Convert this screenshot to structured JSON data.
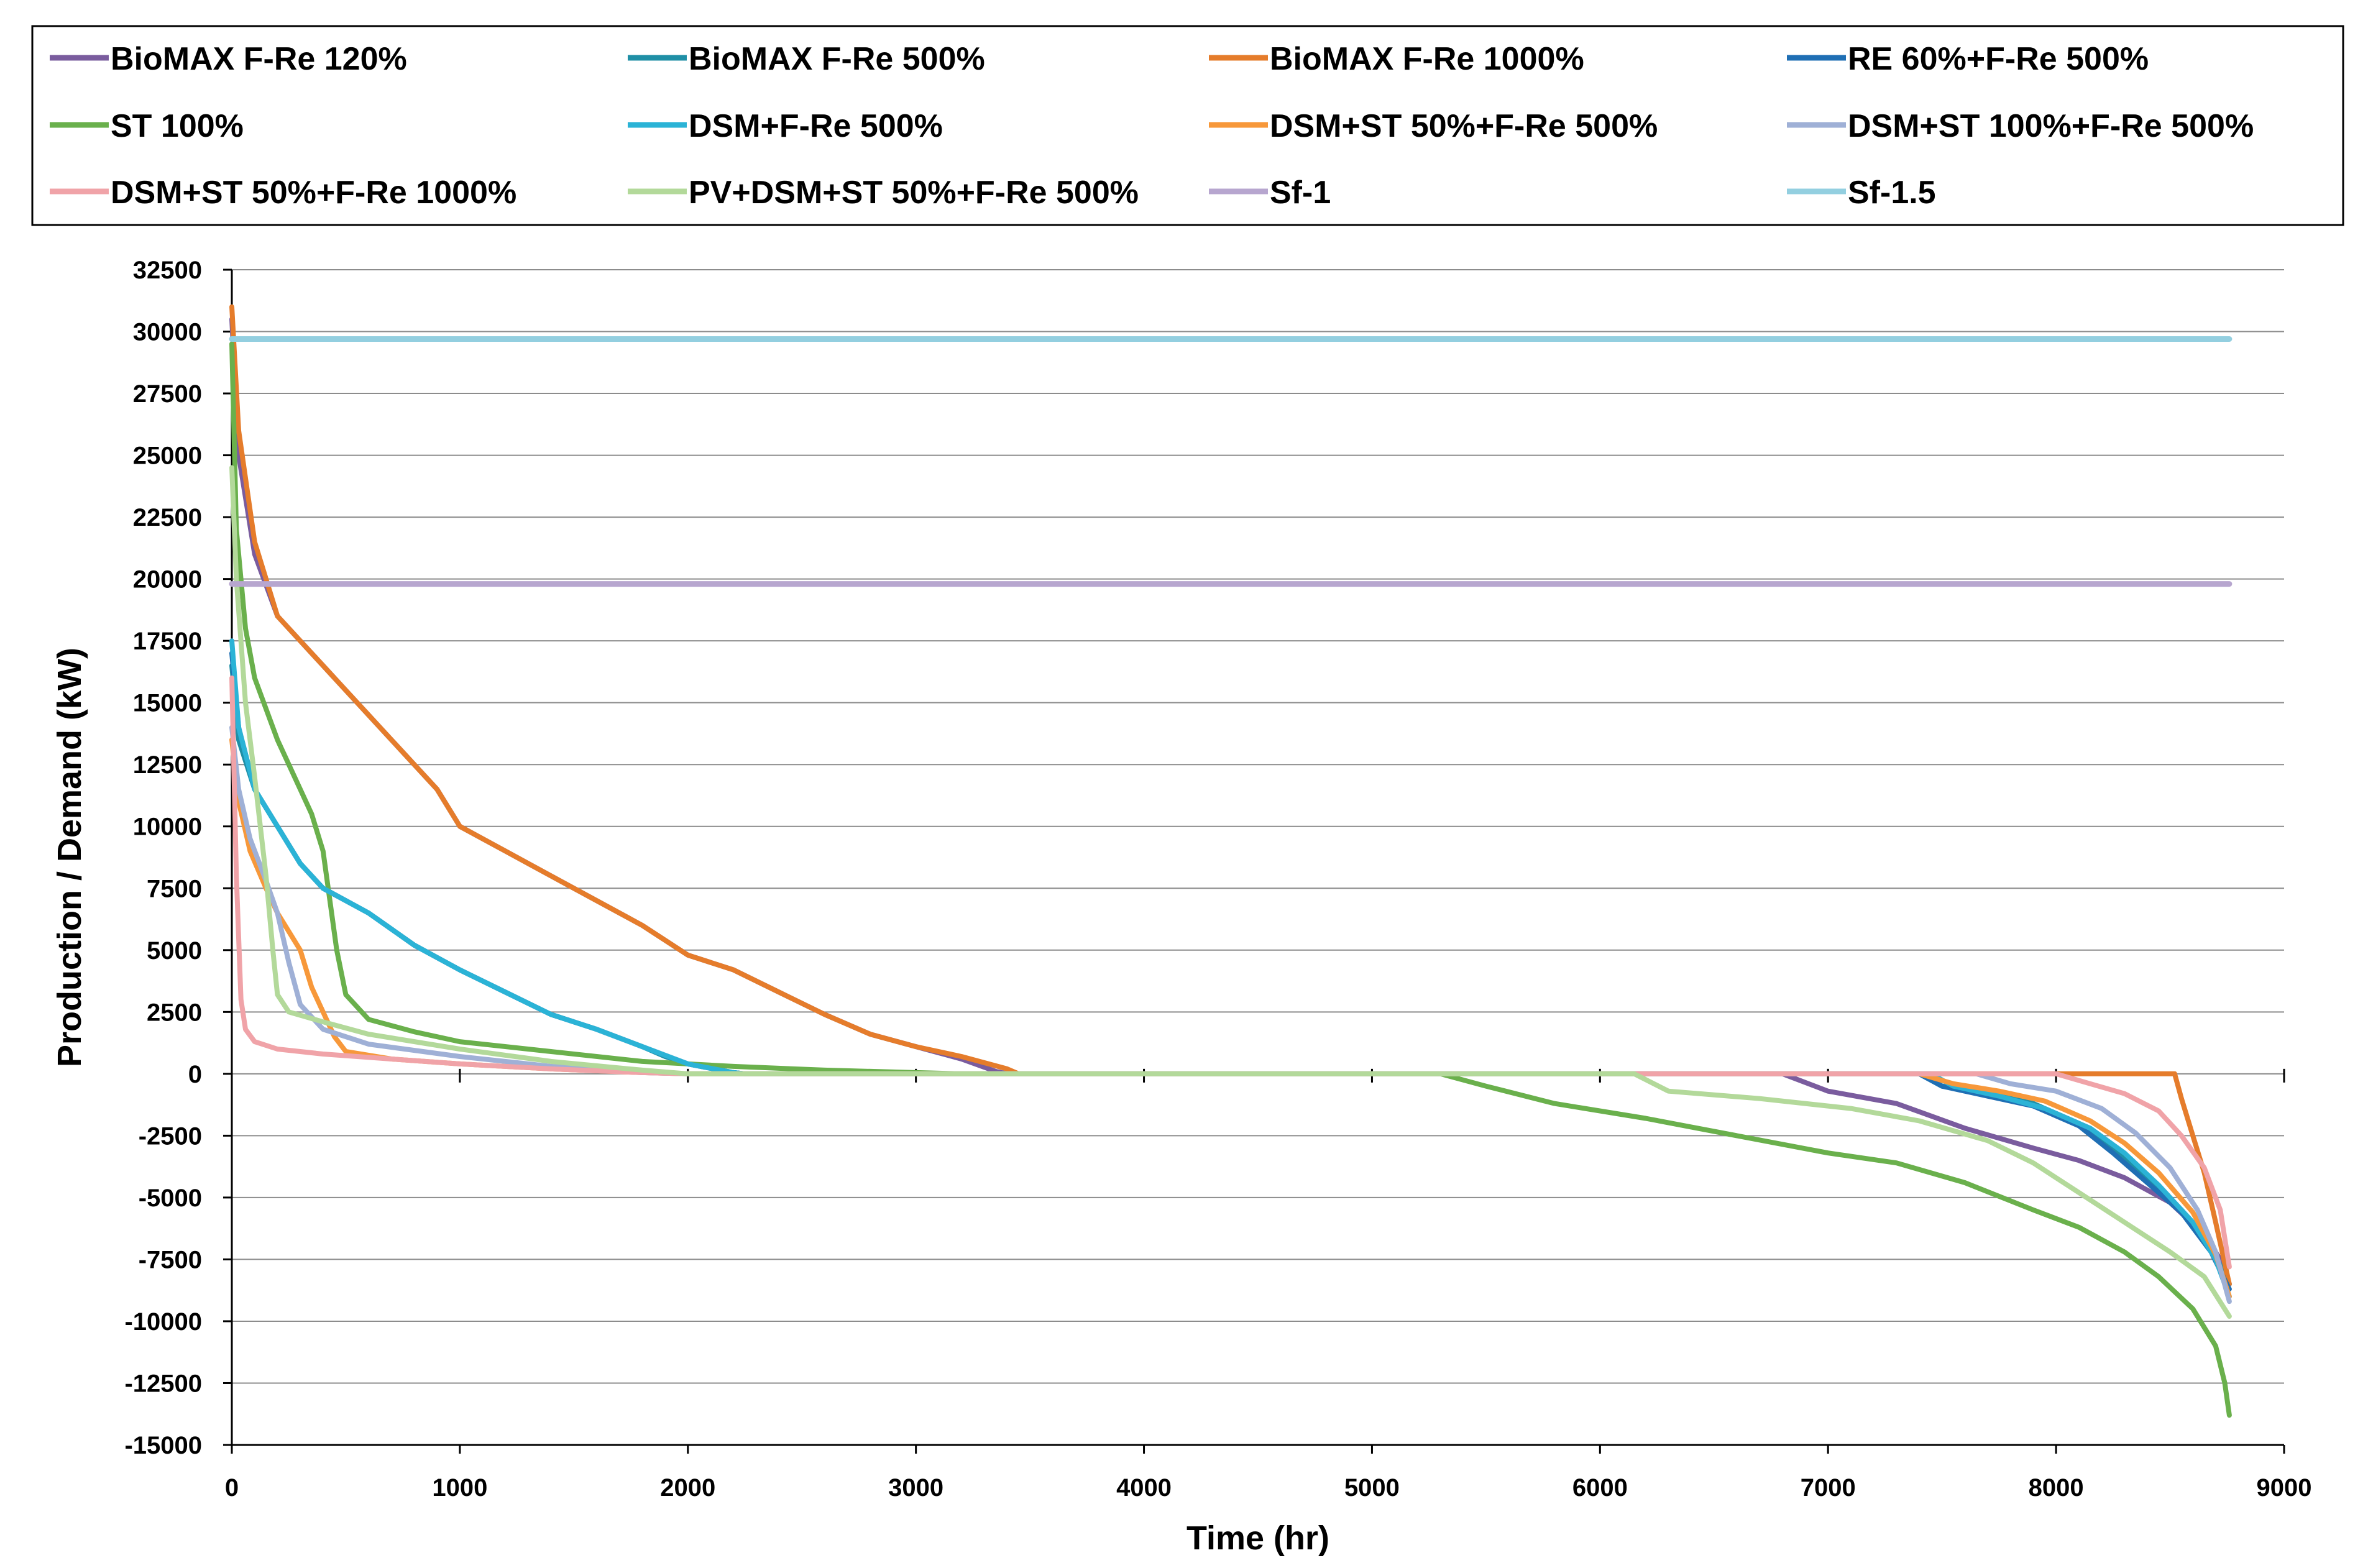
{
  "chart_data": {
    "type": "line",
    "title": "",
    "xlabel": "Time (hr)",
    "ylabel": "Production  / Demand (kW)",
    "xlim": [
      0,
      9000
    ],
    "ylim": [
      -15000,
      32500
    ],
    "xticks": [
      0,
      1000,
      2000,
      3000,
      4000,
      5000,
      6000,
      7000,
      8000,
      9000
    ],
    "yticks": [
      32500,
      30000,
      27500,
      25000,
      22500,
      20000,
      17500,
      15000,
      12500,
      10000,
      7500,
      5000,
      2500,
      0,
      -2500,
      -5000,
      -7500,
      -10000,
      -12500,
      -15000
    ],
    "grid": "horizontal",
    "legend_position": "top",
    "series": [
      {
        "name": "BioMAX F-Re 120%",
        "color": "#7a5c9e",
        "points": [
          [
            0,
            30500
          ],
          [
            30,
            25000
          ],
          [
            100,
            21000
          ],
          [
            200,
            18500
          ],
          [
            300,
            17500
          ],
          [
            400,
            16500
          ],
          [
            500,
            15500
          ],
          [
            700,
            13500
          ],
          [
            900,
            11500
          ],
          [
            1000,
            10000
          ],
          [
            1200,
            9000
          ],
          [
            1400,
            8000
          ],
          [
            1600,
            7000
          ],
          [
            1800,
            6000
          ],
          [
            2000,
            4800
          ],
          [
            2200,
            4200
          ],
          [
            2400,
            3300
          ],
          [
            2600,
            2400
          ],
          [
            2800,
            1600
          ],
          [
            3000,
            1100
          ],
          [
            3200,
            600
          ],
          [
            3350,
            100
          ],
          [
            3400,
            0
          ],
          [
            6800,
            0
          ],
          [
            7000,
            -700
          ],
          [
            7300,
            -1200
          ],
          [
            7600,
            -2200
          ],
          [
            7900,
            -3000
          ],
          [
            8100,
            -3500
          ],
          [
            8300,
            -4200
          ],
          [
            8500,
            -5200
          ],
          [
            8650,
            -6500
          ],
          [
            8720,
            -7500
          ],
          [
            8760,
            -8500
          ]
        ]
      },
      {
        "name": "BioMAX F-Re 500%",
        "color": "#1f8fa6",
        "points": [
          [
            0,
            16500
          ],
          [
            30,
            13500
          ],
          [
            100,
            11500
          ],
          [
            200,
            10000
          ],
          [
            300,
            8500
          ],
          [
            400,
            7500
          ],
          [
            600,
            6500
          ],
          [
            800,
            5200
          ],
          [
            1000,
            4200
          ],
          [
            1200,
            3300
          ],
          [
            1400,
            2400
          ],
          [
            1600,
            1800
          ],
          [
            1800,
            1100
          ],
          [
            1900,
            700
          ],
          [
            2000,
            400
          ],
          [
            2200,
            50
          ],
          [
            2250,
            0
          ],
          [
            7400,
            0
          ],
          [
            7500,
            -500
          ],
          [
            7700,
            -800
          ],
          [
            7900,
            -1200
          ],
          [
            8100,
            -2000
          ],
          [
            8250,
            -3000
          ],
          [
            8400,
            -4200
          ],
          [
            8550,
            -5500
          ],
          [
            8680,
            -7000
          ],
          [
            8760,
            -8500
          ]
        ]
      },
      {
        "name": "BioMAX F-Re 1000%",
        "color": "#e57c2b",
        "points": [
          [
            0,
            31000
          ],
          [
            30,
            26000
          ],
          [
            100,
            21500
          ],
          [
            200,
            18500
          ],
          [
            300,
            17500
          ],
          [
            400,
            16500
          ],
          [
            500,
            15500
          ],
          [
            700,
            13500
          ],
          [
            900,
            11500
          ],
          [
            1000,
            10000
          ],
          [
            1200,
            9000
          ],
          [
            1400,
            8000
          ],
          [
            1600,
            7000
          ],
          [
            1800,
            6000
          ],
          [
            2000,
            4800
          ],
          [
            2200,
            4200
          ],
          [
            2400,
            3300
          ],
          [
            2600,
            2400
          ],
          [
            2800,
            1600
          ],
          [
            3000,
            1100
          ],
          [
            3200,
            700
          ],
          [
            3400,
            200
          ],
          [
            3450,
            0
          ],
          [
            8520,
            0
          ],
          [
            8550,
            -1000
          ],
          [
            8600,
            -2500
          ],
          [
            8650,
            -4000
          ],
          [
            8700,
            -6000
          ],
          [
            8760,
            -8500
          ]
        ]
      },
      {
        "name": "RE 60%+F-Re 500%",
        "color": "#1f6fb4",
        "points": [
          [
            0,
            17000
          ],
          [
            30,
            14000
          ],
          [
            100,
            11500
          ],
          [
            200,
            10000
          ],
          [
            300,
            8500
          ],
          [
            400,
            7500
          ],
          [
            600,
            6500
          ],
          [
            800,
            5200
          ],
          [
            1000,
            4200
          ],
          [
            1200,
            3300
          ],
          [
            1400,
            2400
          ],
          [
            1600,
            1800
          ],
          [
            1800,
            1100
          ],
          [
            2000,
            400
          ],
          [
            2200,
            50
          ],
          [
            2250,
            0
          ],
          [
            7400,
            0
          ],
          [
            7500,
            -500
          ],
          [
            7700,
            -900
          ],
          [
            7900,
            -1300
          ],
          [
            8100,
            -2100
          ],
          [
            8250,
            -3200
          ],
          [
            8400,
            -4400
          ],
          [
            8550,
            -5600
          ],
          [
            8680,
            -7200
          ],
          [
            8760,
            -8700
          ]
        ]
      },
      {
        "name": "ST 100%",
        "color": "#6ab04c",
        "points": [
          [
            0,
            29500
          ],
          [
            20,
            22000
          ],
          [
            60,
            18000
          ],
          [
            100,
            16000
          ],
          [
            200,
            13500
          ],
          [
            300,
            11500
          ],
          [
            350,
            10500
          ],
          [
            400,
            9000
          ],
          [
            430,
            7000
          ],
          [
            460,
            5000
          ],
          [
            500,
            3200
          ],
          [
            600,
            2200
          ],
          [
            800,
            1700
          ],
          [
            1000,
            1300
          ],
          [
            1400,
            900
          ],
          [
            1800,
            500
          ],
          [
            2200,
            300
          ],
          [
            2600,
            150
          ],
          [
            3000,
            50
          ],
          [
            3200,
            0
          ],
          [
            5300,
            0
          ],
          [
            5500,
            -500
          ],
          [
            5800,
            -1200
          ],
          [
            6200,
            -1800
          ],
          [
            6600,
            -2500
          ],
          [
            7000,
            -3200
          ],
          [
            7300,
            -3600
          ],
          [
            7600,
            -4400
          ],
          [
            7900,
            -5500
          ],
          [
            8100,
            -6200
          ],
          [
            8300,
            -7200
          ],
          [
            8450,
            -8200
          ],
          [
            8600,
            -9500
          ],
          [
            8700,
            -11000
          ],
          [
            8740,
            -12500
          ],
          [
            8760,
            -13800
          ]
        ]
      },
      {
        "name": "DSM+F-Re 500%",
        "color": "#2bb3d6",
        "points": [
          [
            0,
            17500
          ],
          [
            30,
            14000
          ],
          [
            100,
            11500
          ],
          [
            200,
            10000
          ],
          [
            300,
            8500
          ],
          [
            400,
            7500
          ],
          [
            600,
            6500
          ],
          [
            800,
            5200
          ],
          [
            1000,
            4200
          ],
          [
            1200,
            3300
          ],
          [
            1400,
            2400
          ],
          [
            1600,
            1800
          ],
          [
            1800,
            1100
          ],
          [
            2000,
            400
          ],
          [
            2200,
            50
          ],
          [
            2250,
            0
          ],
          [
            7450,
            0
          ],
          [
            7550,
            -500
          ],
          [
            7750,
            -900
          ],
          [
            7950,
            -1400
          ],
          [
            8150,
            -2200
          ],
          [
            8300,
            -3200
          ],
          [
            8450,
            -4500
          ],
          [
            8600,
            -6000
          ],
          [
            8700,
            -7500
          ],
          [
            8760,
            -9000
          ]
        ]
      },
      {
        "name": "DSM+ST 50%+F-Re 500%",
        "color": "#f7983a",
        "points": [
          [
            0,
            13500
          ],
          [
            30,
            11000
          ],
          [
            80,
            9000
          ],
          [
            150,
            7500
          ],
          [
            200,
            6500
          ],
          [
            300,
            5000
          ],
          [
            350,
            3500
          ],
          [
            400,
            2500
          ],
          [
            450,
            1500
          ],
          [
            500,
            900
          ],
          [
            700,
            600
          ],
          [
            1000,
            400
          ],
          [
            1400,
            200
          ],
          [
            1800,
            50
          ],
          [
            2000,
            0
          ],
          [
            7400,
            0
          ],
          [
            7550,
            -400
          ],
          [
            7750,
            -700
          ],
          [
            7950,
            -1100
          ],
          [
            8150,
            -1900
          ],
          [
            8300,
            -2800
          ],
          [
            8450,
            -4000
          ],
          [
            8600,
            -5600
          ],
          [
            8700,
            -7300
          ],
          [
            8760,
            -9000
          ]
        ]
      },
      {
        "name": "DSM+ST 100%+F-Re 500%",
        "color": "#9fb0d6",
        "points": [
          [
            0,
            14000
          ],
          [
            30,
            11500
          ],
          [
            80,
            9500
          ],
          [
            150,
            7800
          ],
          [
            200,
            6500
          ],
          [
            250,
            4500
          ],
          [
            300,
            2800
          ],
          [
            400,
            1800
          ],
          [
            600,
            1200
          ],
          [
            1000,
            700
          ],
          [
            1400,
            300
          ],
          [
            1800,
            50
          ],
          [
            2000,
            0
          ],
          [
            7650,
            0
          ],
          [
            7800,
            -400
          ],
          [
            8000,
            -700
          ],
          [
            8200,
            -1400
          ],
          [
            8350,
            -2400
          ],
          [
            8500,
            -3800
          ],
          [
            8620,
            -5500
          ],
          [
            8700,
            -7200
          ],
          [
            8760,
            -9200
          ]
        ]
      },
      {
        "name": "DSM+ST 50%+F-Re 1000%",
        "color": "#f0a3a8",
        "points": [
          [
            0,
            16000
          ],
          [
            20,
            8000
          ],
          [
            40,
            3000
          ],
          [
            60,
            1800
          ],
          [
            100,
            1300
          ],
          [
            200,
            1000
          ],
          [
            400,
            800
          ],
          [
            700,
            600
          ],
          [
            1000,
            400
          ],
          [
            1400,
            200
          ],
          [
            1800,
            50
          ],
          [
            2000,
            0
          ],
          [
            8000,
            0
          ],
          [
            8150,
            -400
          ],
          [
            8300,
            -800
          ],
          [
            8450,
            -1500
          ],
          [
            8550,
            -2500
          ],
          [
            8650,
            -3800
          ],
          [
            8720,
            -5500
          ],
          [
            8760,
            -7800
          ]
        ]
      },
      {
        "name": "PV+DSM+ST 50%+F-Re 500%",
        "color": "#b3d99a",
        "points": [
          [
            0,
            24500
          ],
          [
            20,
            20000
          ],
          [
            60,
            15000
          ],
          [
            100,
            12000
          ],
          [
            150,
            8000
          ],
          [
            180,
            5000
          ],
          [
            200,
            3200
          ],
          [
            250,
            2500
          ],
          [
            400,
            2100
          ],
          [
            600,
            1600
          ],
          [
            1000,
            1000
          ],
          [
            1400,
            500
          ],
          [
            1800,
            150
          ],
          [
            2000,
            0
          ],
          [
            6150,
            0
          ],
          [
            6300,
            -700
          ],
          [
            6700,
            -1000
          ],
          [
            7100,
            -1400
          ],
          [
            7400,
            -1900
          ],
          [
            7700,
            -2700
          ],
          [
            7900,
            -3600
          ],
          [
            8100,
            -4800
          ],
          [
            8300,
            -6000
          ],
          [
            8500,
            -7200
          ],
          [
            8650,
            -8200
          ],
          [
            8760,
            -9800
          ]
        ]
      },
      {
        "name": "Sf-1",
        "color": "#b7a6cf",
        "points": [
          [
            0,
            19800
          ],
          [
            8760,
            19800
          ]
        ]
      },
      {
        "name": "Sf-1.5",
        "color": "#93cfe0",
        "points": [
          [
            0,
            29700
          ],
          [
            8760,
            29700
          ]
        ]
      }
    ]
  }
}
